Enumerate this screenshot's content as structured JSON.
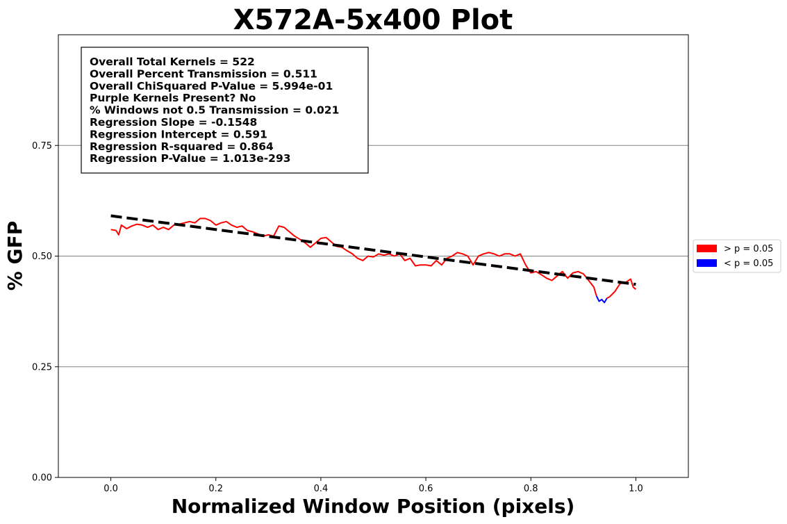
{
  "chart_data": {
    "type": "line",
    "title": "X572A-5x400 Plot",
    "xlabel": "Normalized Window Position (pixels)",
    "ylabel": "% GFP",
    "xlim": [
      -0.1,
      1.1
    ],
    "ylim": [
      0.0,
      1.0
    ],
    "x_ticks": [
      0.0,
      0.2,
      0.4,
      0.6,
      0.8,
      1.0
    ],
    "x_tick_labels": [
      "0.0",
      "0.2",
      "0.4",
      "0.6",
      "0.8",
      "1.0"
    ],
    "y_ticks": [
      0.0,
      0.25,
      0.5,
      0.75
    ],
    "y_tick_labels": [
      "0.00",
      "0.25",
      "0.50",
      "0.75"
    ],
    "grid": "horizontal",
    "legend_placement": "outside-right",
    "legend": [
      {
        "label": "> p = 0.05",
        "color": "#ff0000"
      },
      {
        "label": "< p = 0.05",
        "color": "#0000ff"
      }
    ],
    "stats_box": [
      "Overall Total Kernels = 522",
      "Overall Percent Transmission = 0.511",
      "Overall ChiSquared P-Value = 5.994e-01",
      "Purple Kernels Present? No",
      "% Windows not 0.5 Transmission = 0.021",
      "Regression Slope = -0.1548",
      "Regression Intercept = 0.591",
      "Regression R-squared = 0.864",
      "Regression P-Value = 1.013e-293"
    ],
    "regression": {
      "slope": -0.1548,
      "intercept": 0.591,
      "x_range": [
        0.0,
        1.0
      ],
      "color": "#000000",
      "style": "dashed"
    },
    "series": [
      {
        "color": "#ff0000",
        "x": [
          0.0,
          0.01,
          0.015,
          0.02,
          0.03,
          0.04,
          0.05,
          0.06,
          0.07,
          0.08,
          0.09,
          0.1,
          0.11,
          0.12,
          0.13,
          0.14,
          0.15,
          0.16,
          0.17,
          0.18,
          0.19,
          0.2,
          0.21,
          0.22,
          0.23,
          0.24,
          0.25,
          0.26,
          0.27,
          0.28,
          0.29,
          0.3,
          0.31,
          0.32,
          0.33,
          0.34,
          0.35,
          0.36,
          0.37,
          0.38,
          0.39,
          0.4,
          0.41,
          0.42,
          0.43,
          0.44,
          0.45,
          0.46,
          0.47,
          0.48,
          0.49,
          0.5,
          0.51,
          0.52,
          0.53,
          0.54,
          0.55,
          0.56,
          0.57,
          0.58,
          0.59,
          0.6,
          0.61,
          0.62,
          0.63,
          0.64,
          0.65,
          0.66,
          0.67,
          0.68,
          0.69,
          0.7,
          0.71,
          0.72,
          0.73,
          0.74,
          0.75,
          0.76,
          0.77,
          0.78,
          0.79,
          0.8,
          0.81,
          0.82,
          0.83,
          0.84,
          0.85,
          0.86,
          0.87,
          0.88,
          0.89,
          0.9,
          0.91,
          0.92,
          0.925
        ],
        "y": [
          0.56,
          0.558,
          0.548,
          0.57,
          0.562,
          0.568,
          0.572,
          0.57,
          0.565,
          0.57,
          0.56,
          0.565,
          0.56,
          0.57,
          0.572,
          0.575,
          0.578,
          0.575,
          0.585,
          0.585,
          0.58,
          0.57,
          0.575,
          0.578,
          0.57,
          0.565,
          0.568,
          0.558,
          0.555,
          0.55,
          0.545,
          0.548,
          0.545,
          0.568,
          0.565,
          0.555,
          0.545,
          0.538,
          0.53,
          0.52,
          0.53,
          0.54,
          0.542,
          0.532,
          0.522,
          0.52,
          0.512,
          0.505,
          0.495,
          0.49,
          0.5,
          0.498,
          0.505,
          0.502,
          0.505,
          0.5,
          0.505,
          0.49,
          0.495,
          0.478,
          0.48,
          0.48,
          0.478,
          0.49,
          0.48,
          0.495,
          0.5,
          0.508,
          0.505,
          0.5,
          0.48,
          0.5,
          0.505,
          0.508,
          0.505,
          0.5,
          0.505,
          0.505,
          0.5,
          0.505,
          0.48,
          0.462,
          0.465,
          0.458,
          0.45,
          0.445,
          0.455,
          0.465,
          0.45,
          0.462,
          0.465,
          0.46,
          0.445,
          0.43,
          0.41
        ]
      },
      {
        "color": "#0000ff",
        "x": [
          0.925,
          0.93,
          0.935,
          0.94,
          0.945
        ],
        "y": [
          0.41,
          0.398,
          0.402,
          0.395,
          0.405
        ]
      },
      {
        "color": "#ff0000",
        "x": [
          0.945,
          0.95,
          0.96,
          0.97,
          0.98,
          0.99,
          0.995,
          1.0
        ],
        "y": [
          0.405,
          0.408,
          0.42,
          0.438,
          0.44,
          0.448,
          0.43,
          0.425
        ]
      }
    ]
  }
}
